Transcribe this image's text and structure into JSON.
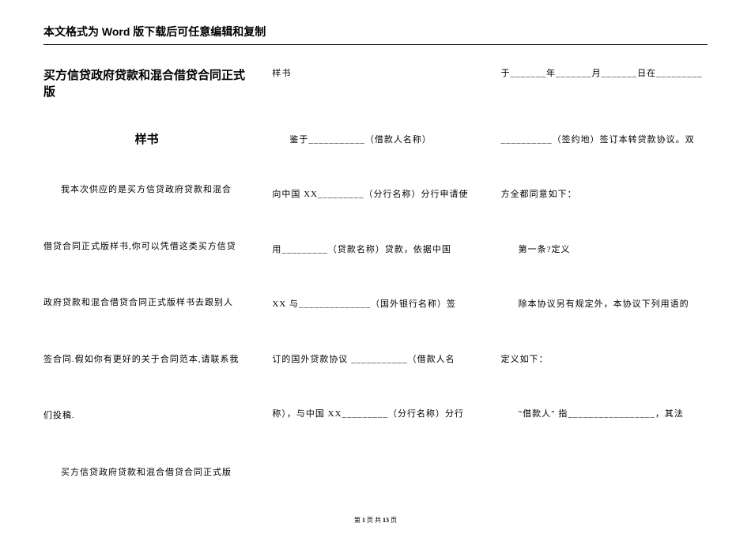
{
  "header": {
    "notice": "本文格式为 Word 版下载后可任意编辑和复制"
  },
  "col1": {
    "title": "买方信贷政府贷款和混合借贷合同正式版",
    "subtitle": "样书",
    "p1": "我本次供应的是买方信贷政府贷款和混合",
    "p2": "借贷合同正式版样书,你可以凭借这类买方信贷",
    "p3": "政府贷款和混合借贷合同正式版样书去跟别人",
    "p4": "签合同.假如你有更好的关于合同范本,请联系我",
    "p5": "们投稿.",
    "p6": "买方信贷政府贷款和混合借贷合同正式版"
  },
  "col2": {
    "p1": "样书",
    "p2": "鉴于___________（借款人名称）",
    "p3": "向中国 XX_________（分行名称）分行申请使",
    "p4": "用_________（贷款名称）贷款，依据中国",
    "p5": "XX 与______________（国外银行名称）签",
    "p6": "订的国外贷款协议 ___________（借款人名",
    "p7": "称），与中国 XX_________（分行名称）分行"
  },
  "col3": {
    "p1": "于_______年_______月_______日在_________",
    "p2": "__________（签约地）签订本转贷款协议。双",
    "p3": "方全都同意如下：",
    "p4": "第一条?定义",
    "p5": "除本协议另有规定外，本协议下列用语的",
    "p6": "定义如下：",
    "p7": "\"借款人\" 指_________________，其法"
  },
  "footer": {
    "prefix": "第 ",
    "page_current": "1",
    "mid": " 页 共 ",
    "page_total": "13",
    "suffix": " 页"
  }
}
